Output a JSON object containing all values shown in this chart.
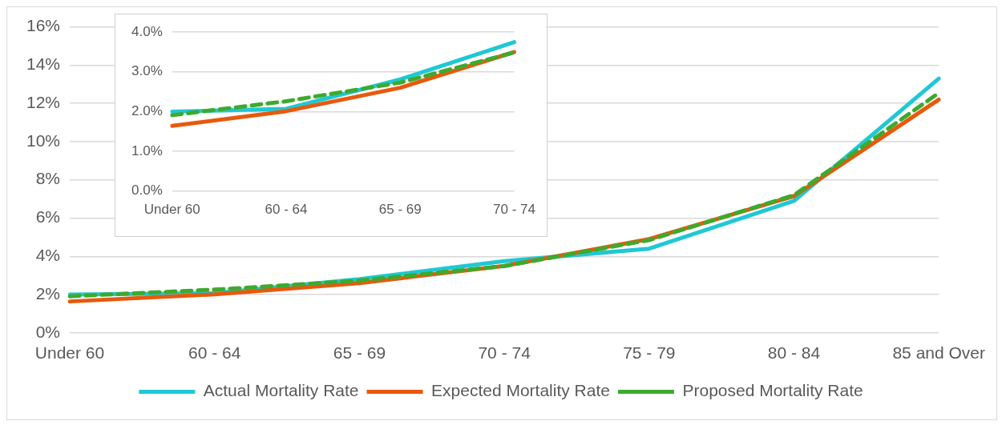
{
  "chart_data": [
    {
      "type": "line",
      "categories": [
        "Under 60",
        "60 - 64",
        "65 - 69",
        "70 - 74",
        "75 - 79",
        "80 - 84",
        "85 and Over"
      ],
      "series": [
        {
          "name": "Actual Mortality Rate",
          "color": "#1fc8d4",
          "values": [
            2.0,
            2.07,
            2.81,
            3.75,
            4.4,
            6.9,
            13.3
          ]
        },
        {
          "name": "Expected Mortality Rate",
          "color": "#e8590c",
          "values": [
            1.64,
            2.01,
            2.6,
            3.5,
            4.9,
            7.15,
            12.2
          ]
        },
        {
          "name": "Proposed Mortality Rate",
          "color": "#3daa2e",
          "values": [
            1.91,
            2.26,
            2.73,
            3.49,
            4.85,
            7.2,
            12.55
          ],
          "line_style": "dashed"
        }
      ],
      "ylim": [
        0,
        16
      ],
      "yticks": [
        {
          "value": 0,
          "label": "0%"
        },
        {
          "value": 2,
          "label": "2%"
        },
        {
          "value": 4,
          "label": "4%"
        },
        {
          "value": 6,
          "label": "6%"
        },
        {
          "value": 8,
          "label": "8%"
        },
        {
          "value": 10,
          "label": "10%"
        },
        {
          "value": 12,
          "label": "12%"
        },
        {
          "value": 14,
          "label": "14%"
        },
        {
          "value": 16,
          "label": "16%"
        }
      ],
      "grid": "y",
      "legend": "bottom",
      "marker": "none"
    },
    {
      "type": "line",
      "categories": [
        "Under 60",
        "60 - 64",
        "65 - 69",
        "70 - 74"
      ],
      "series": [
        {
          "color": "#1fc8d4",
          "values": [
            2.0,
            2.07,
            2.81,
            3.75
          ]
        },
        {
          "color": "#e8590c",
          "values": [
            1.64,
            2.01,
            2.6,
            3.5
          ]
        },
        {
          "color": "#3daa2e",
          "values": [
            1.91,
            2.26,
            2.73,
            3.49
          ],
          "line_style": "dashed"
        }
      ],
      "ylim": [
        0,
        4
      ],
      "yticks": [
        {
          "value": 0,
          "label": "0.0%"
        },
        {
          "value": 1,
          "label": "1.0%"
        },
        {
          "value": 2,
          "label": "2.0%"
        },
        {
          "value": 3,
          "label": "3.0%"
        },
        {
          "value": 4,
          "label": "4.0%"
        }
      ],
      "grid": "y",
      "marker": "none"
    }
  ]
}
